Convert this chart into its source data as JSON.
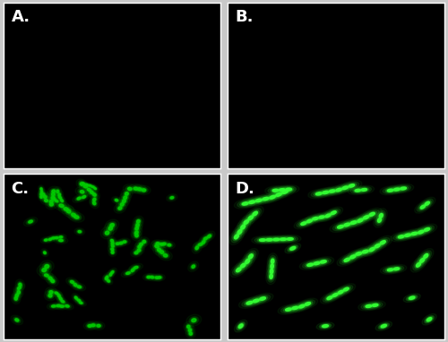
{
  "figure_bg": "#c8c8c8",
  "panel_bg": "#000000",
  "labels": [
    "A.",
    "B.",
    "C.",
    "D."
  ],
  "label_color": "#ffffff",
  "label_fontsize": 13,
  "label_fontweight": "bold",
  "bacteria_color_C": "#00cc00",
  "bacteria_color_D": "#33ff33",
  "border_color": "#ffffff",
  "border_lw": 1.0,
  "seed_C": 42,
  "seed_D": 77,
  "n_clusters_C": 45,
  "n_chains_D": 22,
  "hspace": 0.035,
  "wspace": 0.035
}
